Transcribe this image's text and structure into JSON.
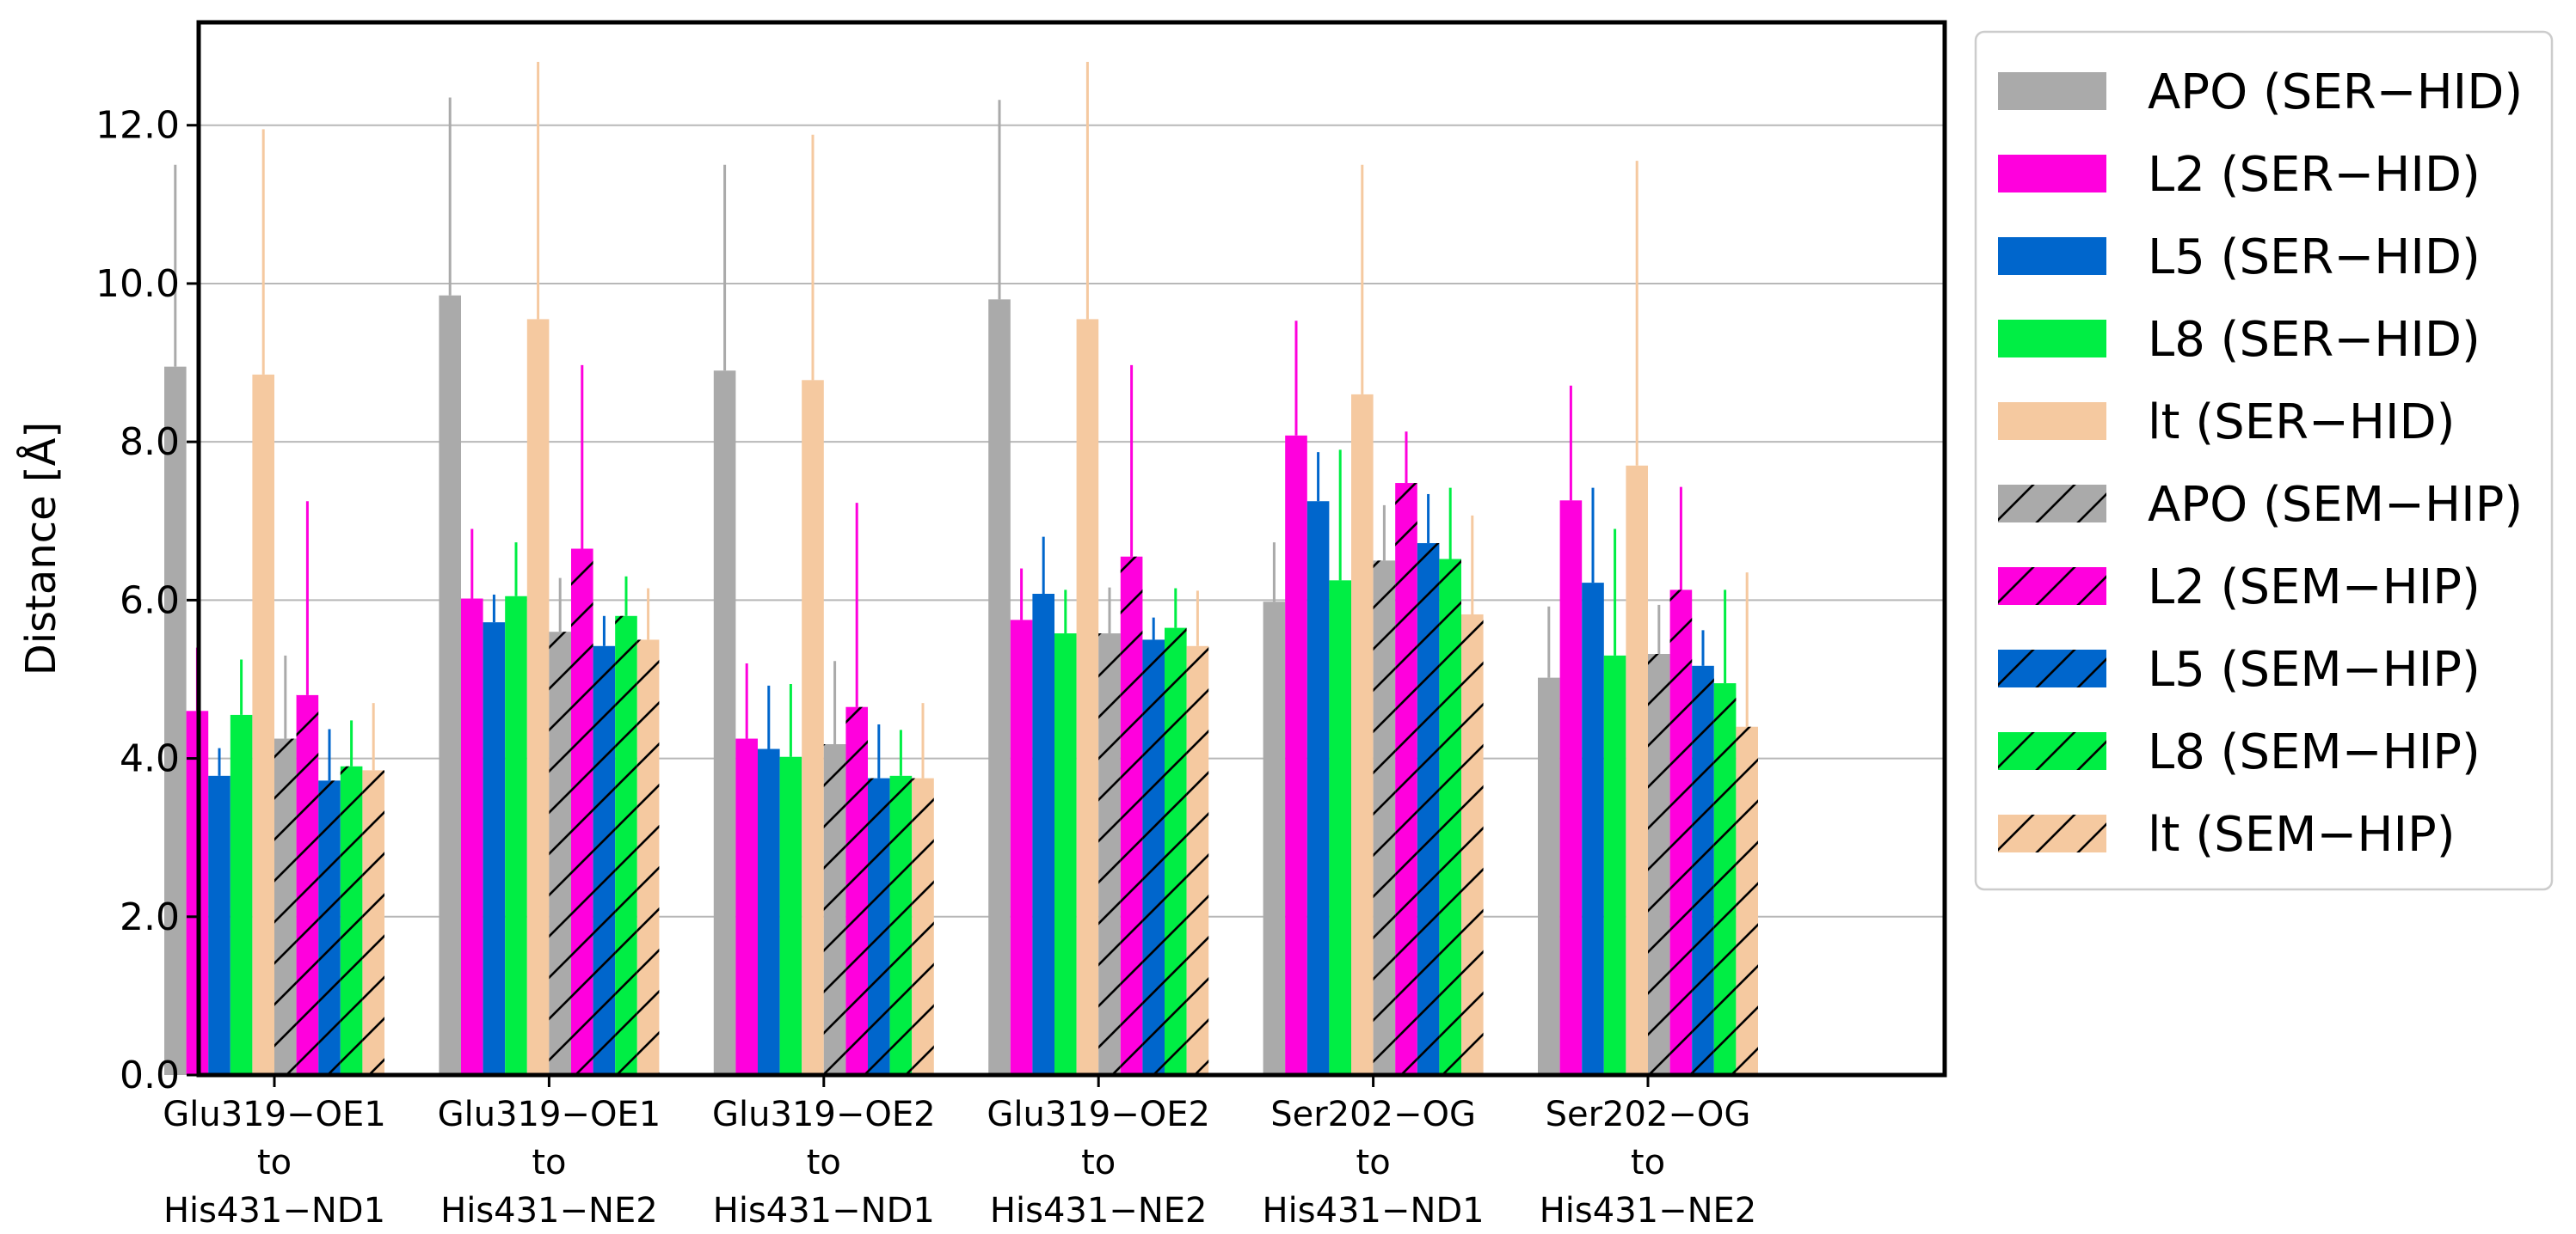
{
  "chart_data": {
    "type": "bar",
    "title": "",
    "xlabel": "",
    "ylabel": "Distance [Å]",
    "ylim": [
      0,
      13.3
    ],
    "yticks": [
      "0.0",
      "2.0",
      "4.0",
      "6.0",
      "8.0",
      "10.0",
      "12.0"
    ],
    "ytick_values": [
      0,
      2,
      4,
      6,
      8,
      10,
      12
    ],
    "grid": "horizontal",
    "legend_position": "outside-right",
    "categories": [
      [
        "Glu319−OE1",
        "to",
        "His431−ND1"
      ],
      [
        "Glu319−OE1",
        "to",
        "His431−NE2"
      ],
      [
        "Glu319−OE2",
        "to",
        "His431−ND1"
      ],
      [
        "Glu319−OE2",
        "to",
        "His431−NE2"
      ],
      [
        "Ser202−OG",
        "to",
        "His431−ND1"
      ],
      [
        "Ser202−OG",
        "to",
        "His431−NE2"
      ]
    ],
    "series": [
      {
        "name": "APO (SER−HID)",
        "color": "#aaaaaa",
        "hatch": false,
        "values": [
          8.95,
          9.85,
          8.9,
          9.8,
          5.98,
          5.02
        ],
        "errors": [
          2.55,
          2.5,
          2.6,
          2.52,
          0.75,
          0.9
        ]
      },
      {
        "name": "L2 (SER−HID)",
        "color": "#ff00dd",
        "hatch": false,
        "values": [
          4.6,
          6.02,
          4.25,
          5.75,
          8.08,
          7.26
        ],
        "errors": [
          0.8,
          0.88,
          0.95,
          0.65,
          1.45,
          1.45
        ]
      },
      {
        "name": "L5 (SER−HID)",
        "color": "#0066cc",
        "hatch": false,
        "values": [
          3.78,
          5.72,
          4.12,
          6.08,
          7.25,
          6.22
        ],
        "errors": [
          0.35,
          0.35,
          0.8,
          0.72,
          0.62,
          1.2
        ]
      },
      {
        "name": "L8 (SER−HID)",
        "color": "#00ee44",
        "hatch": false,
        "values": [
          4.55,
          6.05,
          4.02,
          5.58,
          6.25,
          5.3
        ],
        "errors": [
          0.7,
          0.68,
          0.92,
          0.55,
          1.65,
          1.6
        ]
      },
      {
        "name": "lt (SER−HID)",
        "color": "#f5c9a0",
        "hatch": false,
        "values": [
          8.85,
          9.55,
          8.78,
          9.55,
          8.6,
          7.7
        ],
        "errors": [
          3.1,
          3.25,
          3.1,
          3.25,
          2.9,
          3.85
        ]
      },
      {
        "name": "APO (SEM−HIP)",
        "color": "#aaaaaa",
        "hatch": true,
        "values": [
          4.25,
          5.6,
          4.18,
          5.58,
          6.5,
          5.32
        ],
        "errors": [
          1.05,
          0.68,
          1.05,
          0.58,
          0.7,
          0.62
        ]
      },
      {
        "name": "L2 (SEM−HIP)",
        "color": "#ff00dd",
        "hatch": true,
        "values": [
          4.8,
          6.65,
          4.65,
          6.55,
          7.48,
          6.13
        ],
        "errors": [
          2.45,
          2.32,
          2.58,
          2.42,
          0.65,
          1.3
        ]
      },
      {
        "name": "L5 (SEM−HIP)",
        "color": "#0066cc",
        "hatch": true,
        "values": [
          3.72,
          5.42,
          3.75,
          5.5,
          6.72,
          5.17
        ],
        "errors": [
          0.65,
          0.38,
          0.68,
          0.28,
          0.62,
          0.45
        ]
      },
      {
        "name": "L8 (SEM−HIP)",
        "color": "#00ee44",
        "hatch": true,
        "values": [
          3.9,
          5.8,
          3.78,
          5.65,
          6.52,
          4.95
        ],
        "errors": [
          0.58,
          0.5,
          0.58,
          0.5,
          0.9,
          1.18
        ]
      },
      {
        "name": "lt (SEM−HIP)",
        "color": "#f5c9a0",
        "hatch": true,
        "values": [
          3.85,
          5.5,
          3.75,
          5.42,
          5.82,
          4.4
        ],
        "errors": [
          0.85,
          0.65,
          0.95,
          0.7,
          1.25,
          1.95
        ]
      }
    ]
  }
}
